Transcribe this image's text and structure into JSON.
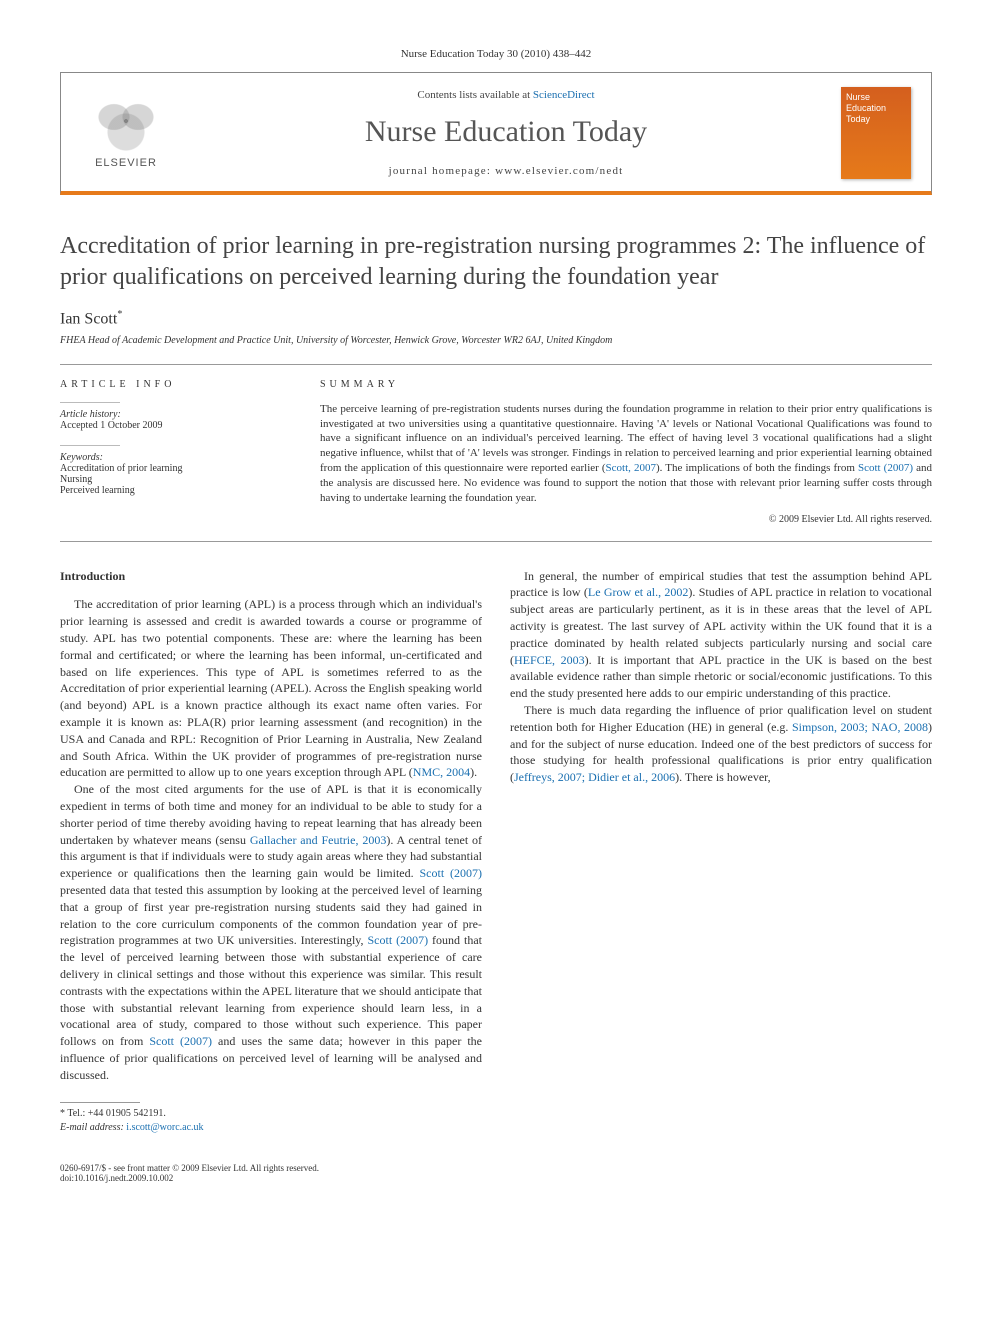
{
  "citation": "Nurse Education Today 30 (2010) 438–442",
  "header": {
    "contents_prefix": "Contents lists available at ",
    "contents_link": "ScienceDirect",
    "journal_title": "Nurse Education Today",
    "homepage_label": "journal homepage: www.elsevier.com/nedt",
    "publisher_logo_label": "ELSEVIER",
    "cover_text": "Nurse Education Today"
  },
  "article": {
    "title": "Accreditation of prior learning in pre-registration nursing programmes 2: The influence of prior qualifications on perceived learning during the foundation year",
    "author": "Ian Scott",
    "author_marker": "*",
    "affiliation": "FHEA Head of Academic Development and Practice Unit, University of Worcester, Henwick Grove, Worcester WR2 6AJ, United Kingdom"
  },
  "article_info": {
    "head": "ARTICLE INFO",
    "history_label": "Article history:",
    "history_value": "Accepted 1 October 2009",
    "keywords_label": "Keywords:",
    "keywords": [
      "Accreditation of prior learning",
      "Nursing",
      "Perceived learning"
    ]
  },
  "summary": {
    "head": "SUMMARY",
    "text_1": "The perceive learning of pre-registration students nurses during the foundation programme in relation to their prior entry qualifications is investigated at two universities using a quantitative questionnaire. Having 'A' levels or National Vocational Qualifications was found to have a significant influence on an individual's perceived learning. The effect of having level 3 vocational qualifications had a slight negative influence, whilst that of 'A' levels was stronger. Findings in relation to perceived learning and prior experiential learning obtained from the application of this questionnaire were reported earlier (",
    "link_1": "Scott, 2007",
    "text_2": "). The implications of both the findings from ",
    "link_2": "Scott (2007)",
    "text_3": " and the analysis are discussed here. No evidence was found to support the notion that those with relevant prior learning suffer costs through having to undertake learning the foundation year.",
    "copyright": "© 2009 Elsevier Ltd. All rights reserved."
  },
  "body": {
    "intro_head": "Introduction",
    "p1a": "The accreditation of prior learning (APL) is a process through which an individual's prior learning is assessed and credit is awarded towards a course or programme of study. APL has two potential components. These are: where the learning has been formal and certificated; or where the learning has been informal, un-certificated and based on life experiences. This type of APL is sometimes referred to as the Accreditation of prior experiential learning (APEL). Across the English speaking world (and beyond) APL is a known practice although its exact name often varies. For example it is known as: PLA(R) prior learning assessment (and recognition) in the USA and Canada and RPL: Recognition of Prior Learning in Australia, New Zealand and South Africa. Within the UK provider of programmes of pre-registration nurse education are permitted to allow up to one years exception through APL (",
    "p1_link": "NMC, 2004",
    "p1b": ").",
    "p2a": "One of the most cited arguments for the use of APL is that it is economically expedient in terms of both time and money for an individual to be able to study for a shorter period of time thereby avoiding having to repeat learning that has already been undertaken by whatever means (sensu ",
    "p2_link1": "Gallacher and Feutrie, 2003",
    "p2b": "). A central tenet of this argument is that if individuals were to study again areas where they had substantial experience or qualifications then the learning gain would be limited. ",
    "p2_link2": "Scott (2007)",
    "p2c": " presented data that tested this assumption by looking at the perceived level of learning that a group of first year pre-registration nursing stu",
    "p2d": "dents said they had gained in relation to the core curriculum components of the common foundation year of pre-registration programmes at two UK universities. Interestingly, ",
    "p2_link3": "Scott (2007)",
    "p2e": " found that the level of perceived learning between those with substantial experience of care delivery in clinical settings and those without this experience was similar. This result contrasts with the expectations within the APEL literature that we should anticipate that those with substantial relevant learning from experience should learn less, in a vocational area of study, compared to those without such experience. This paper follows on from ",
    "p2_link4": "Scott (2007)",
    "p2f": " and uses the same data; however in this paper the influence of prior qualifications on perceived level of learning will be analysed and discussed.",
    "p3a": "In general, the number of empirical studies that test the assumption behind APL practice is low (",
    "p3_link1": "Le Grow et al., 2002",
    "p3b": "). Studies of APL practice in relation to vocational subject areas are particularly pertinent, as it is in these areas that the level of APL activity is greatest. The last survey of APL activity within the UK found that it is a practice dominated by health related subjects particularly nursing and social care (",
    "p3_link2": "HEFCE, 2003",
    "p3c": "). It is important that APL practice in the UK is based on the best available evidence rather than simple rhetoric or social/economic justifications. To this end the study presented here adds to our empiric understanding of this practice.",
    "p4a": "There is much data regarding the influence of prior qualification level on student retention both for Higher Education (HE) in general (e.g. ",
    "p4_link1": "Simpson, 2003; NAO, 2008",
    "p4b": ") and for the subject of nurse education. Indeed one of the best predictors of success for those studying for health professional qualifications is prior entry qualification (",
    "p4_link2": "Jeffreys, 2007; Didier et al., 2006",
    "p4c": "). There is however,"
  },
  "footnote": {
    "tel_label": "* Tel.: +44 01905 542191.",
    "email_label": "E-mail address:",
    "email": "i.scott@worc.ac.uk"
  },
  "footer": {
    "line1": "0260-6917/$ - see front matter © 2009 Elsevier Ltd. All rights reserved.",
    "line2": "doi:10.1016/j.nedt.2009.10.002"
  },
  "colors": {
    "accent": "#e67a1a",
    "link": "#1a6fb0",
    "text": "#333333",
    "rule": "#999999",
    "bg": "#ffffff"
  },
  "typography": {
    "title_fontsize": 24,
    "journal_title_fontsize": 30,
    "body_fontsize": 12,
    "meta_fontsize": 10
  }
}
